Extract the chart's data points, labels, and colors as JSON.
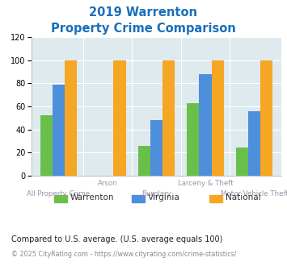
{
  "title_line1": "2019 Warrenton",
  "title_line2": "Property Crime Comparison",
  "categories": [
    "All Property Crime",
    "Arson",
    "Burglary",
    "Larceny & Theft",
    "Motor Vehicle Theft"
  ],
  "warrenton": [
    52,
    0,
    26,
    63,
    24
  ],
  "virginia": [
    79,
    0,
    48,
    88,
    56
  ],
  "national": [
    100,
    100,
    100,
    100,
    100
  ],
  "color_warrenton": "#6abf4b",
  "color_virginia": "#4d8fdb",
  "color_national": "#f5a623",
  "ylim": [
    0,
    120
  ],
  "yticks": [
    0,
    20,
    40,
    60,
    80,
    100,
    120
  ],
  "legend_labels": [
    "Warrenton",
    "Virginia",
    "National"
  ],
  "footnote": "Compared to U.S. average. (U.S. average equals 100)",
  "copyright": "© 2025 CityRating.com - https://www.cityrating.com/crime-statistics/",
  "bg_color": "#deeaee",
  "title_color": "#1a6fba",
  "xlabel_color": "#a090a8",
  "bar_width": 0.25,
  "footnote_color": "#333333",
  "copyright_color": "#888888"
}
